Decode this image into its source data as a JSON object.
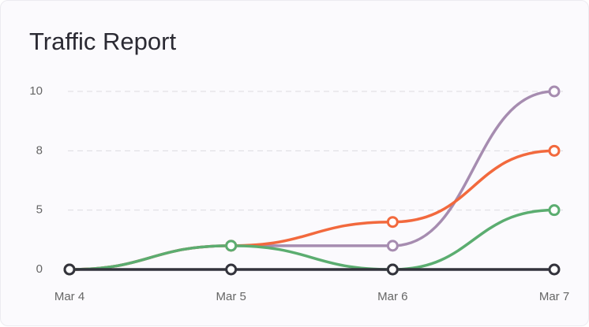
{
  "chart_data": {
    "type": "line",
    "title": "Traffic Report",
    "categories": [
      "Mar 4",
      "Mar 5",
      "Mar 6",
      "Mar 7"
    ],
    "series": [
      {
        "color": "#a68cb0",
        "values": [
          0,
          2,
          2,
          10
        ]
      },
      {
        "color": "#f2693d",
        "values": [
          0,
          2,
          4,
          8
        ]
      },
      {
        "color": "#5bad70",
        "values": [
          0,
          2,
          0,
          5
        ]
      },
      {
        "color": "#33333c",
        "values": [
          0,
          0,
          0,
          0
        ]
      }
    ],
    "ylim": [
      0,
      10
    ],
    "yticks": [
      0,
      5,
      8,
      10
    ],
    "grid": true
  }
}
